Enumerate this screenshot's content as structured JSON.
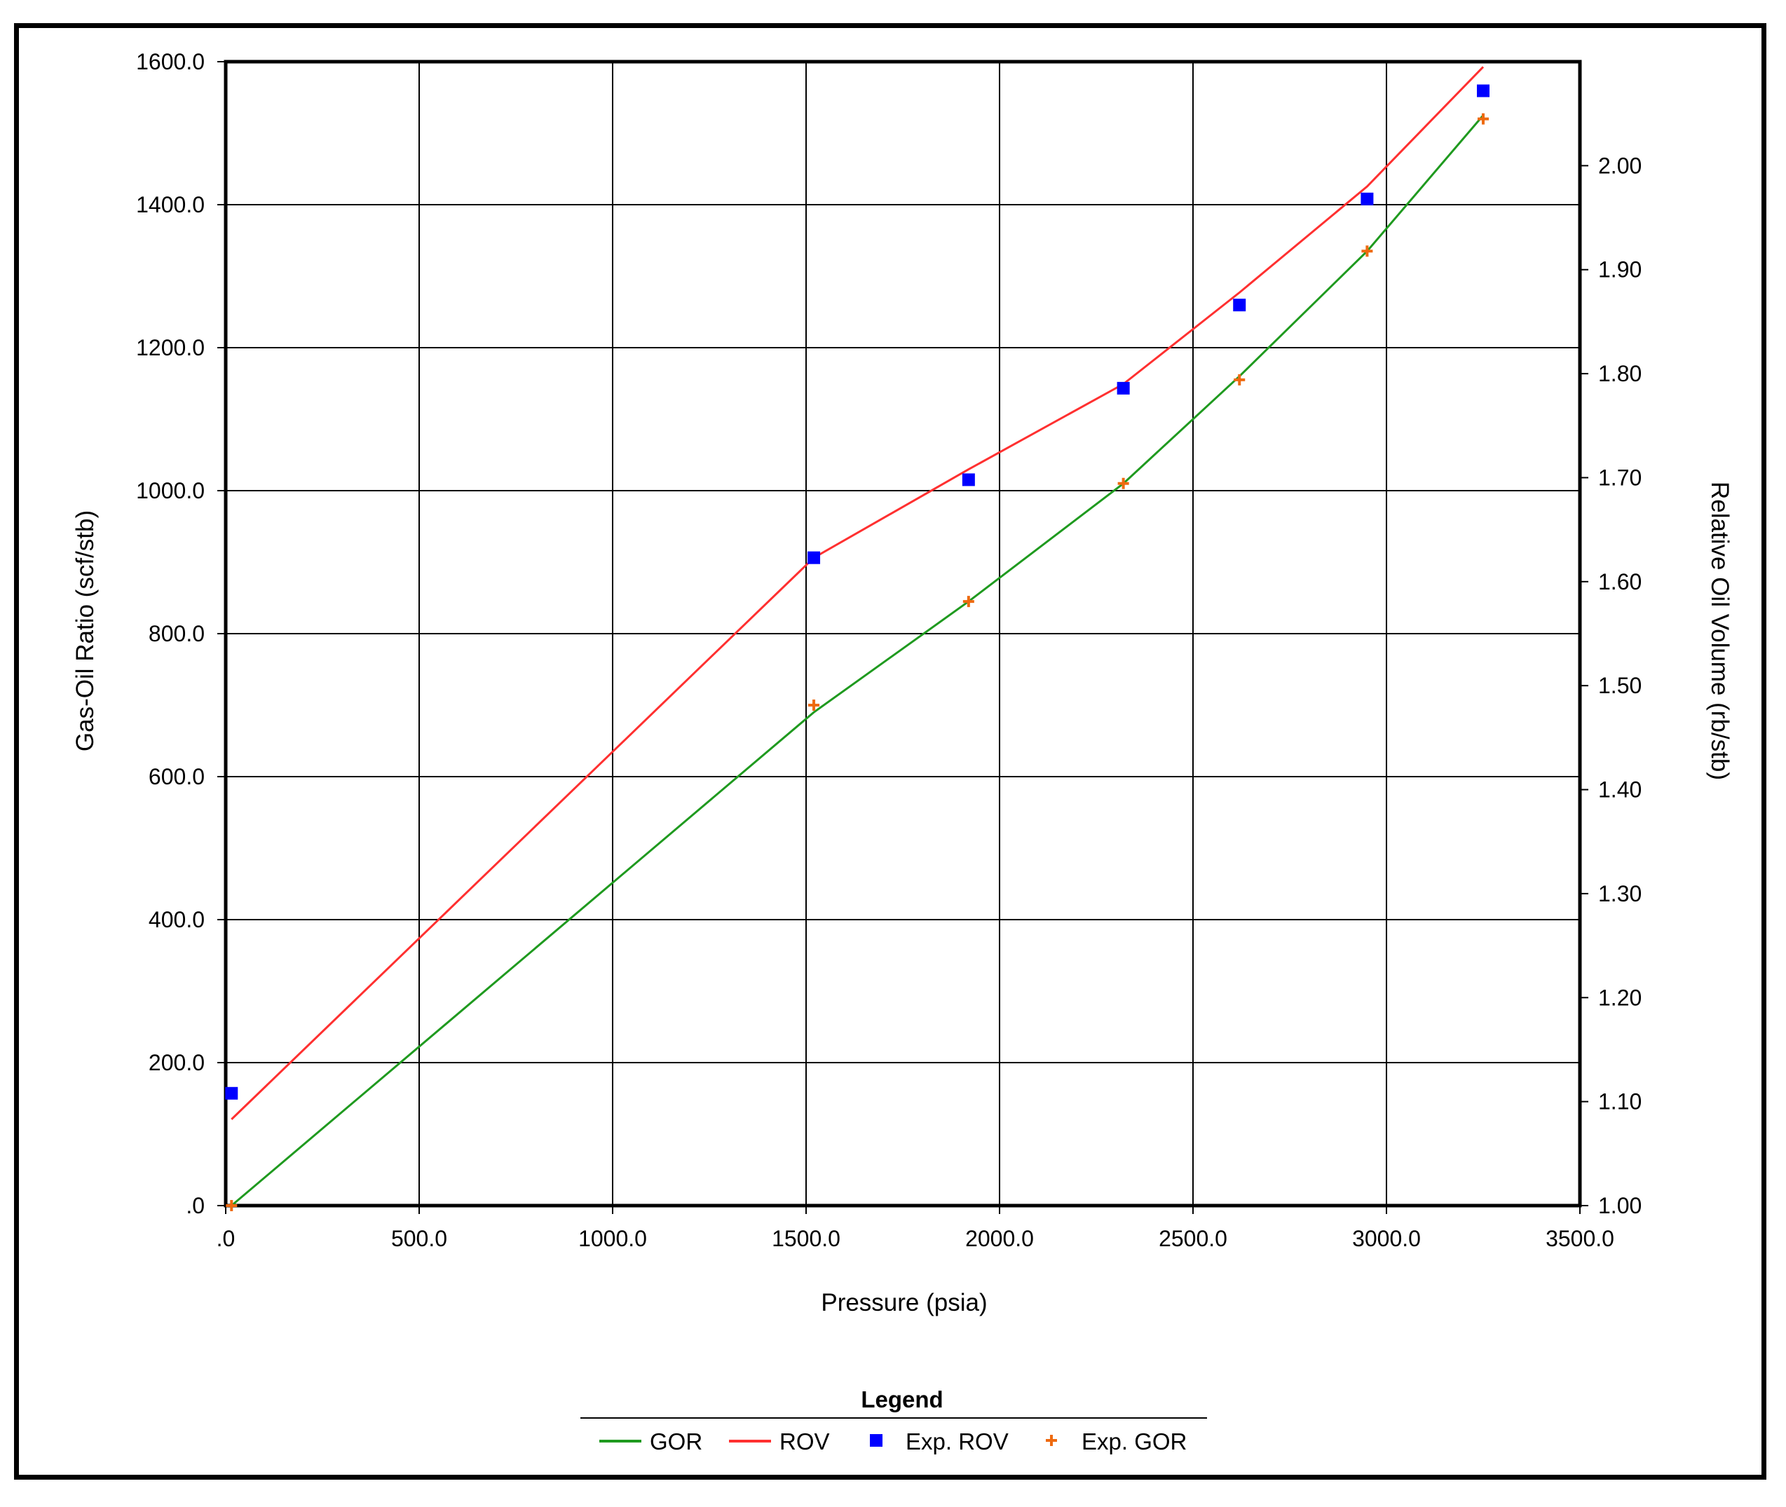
{
  "chart_data": {
    "type": "line",
    "title": "",
    "xlabel": "Pressure (psia)",
    "ylabel": "Gas-Oil Ratio (scf/stb)",
    "y2label": "Relative Oil Volume (rb/stb)",
    "xlim": [
      0,
      3500
    ],
    "ylim": [
      0,
      1600
    ],
    "y2lim": [
      1.0,
      2.1
    ],
    "grid": true,
    "x_ticks": [
      ".0",
      "500.0",
      "1000.0",
      "1500.0",
      "2000.0",
      "2500.0",
      "3000.0",
      "3500.0"
    ],
    "y_ticks": [
      ".0",
      "200.0",
      "400.0",
      "600.0",
      "800.0",
      "1000.0",
      "1200.0",
      "1400.0",
      "1600.0"
    ],
    "y2_ticks": [
      "1.00",
      "1.10",
      "1.20",
      "1.30",
      "1.40",
      "1.50",
      "1.60",
      "1.70",
      "1.80",
      "1.90",
      "2.00"
    ],
    "legend": {
      "title": "Legend",
      "position": "bottom",
      "entries": [
        "GOR",
        "ROV",
        "Exp. ROV",
        "Exp. GOR"
      ]
    },
    "series": [
      {
        "name": "GOR",
        "kind": "line",
        "axis": "left",
        "color": "#1f9a1f",
        "x": [
          15,
          1520,
          1920,
          2320,
          2620,
          2950,
          3250
        ],
        "y": [
          0,
          690,
          845,
          1010,
          1160,
          1335,
          1525
        ]
      },
      {
        "name": "ROV",
        "kind": "line",
        "axis": "right",
        "color": "#ff3030",
        "x": [
          15,
          1520,
          1920,
          2320,
          2620,
          2950,
          3250
        ],
        "y": [
          1.083,
          1.623,
          1.708,
          1.79,
          1.878,
          1.98,
          2.095
        ]
      },
      {
        "name": "Exp. ROV",
        "kind": "scatter",
        "marker": "square",
        "axis": "right",
        "color": "#0000ff",
        "x": [
          15,
          1520,
          1920,
          2320,
          2620,
          2950,
          3250
        ],
        "y": [
          1.108,
          1.623,
          1.698,
          1.786,
          1.866,
          1.968,
          2.072
        ]
      },
      {
        "name": "Exp. GOR",
        "kind": "scatter",
        "marker": "plus",
        "axis": "left",
        "color": "#ee6a10",
        "x": [
          15,
          1520,
          1920,
          2320,
          2620,
          2950,
          3250
        ],
        "y": [
          0,
          700,
          845,
          1010,
          1155,
          1335,
          1520
        ]
      }
    ]
  }
}
